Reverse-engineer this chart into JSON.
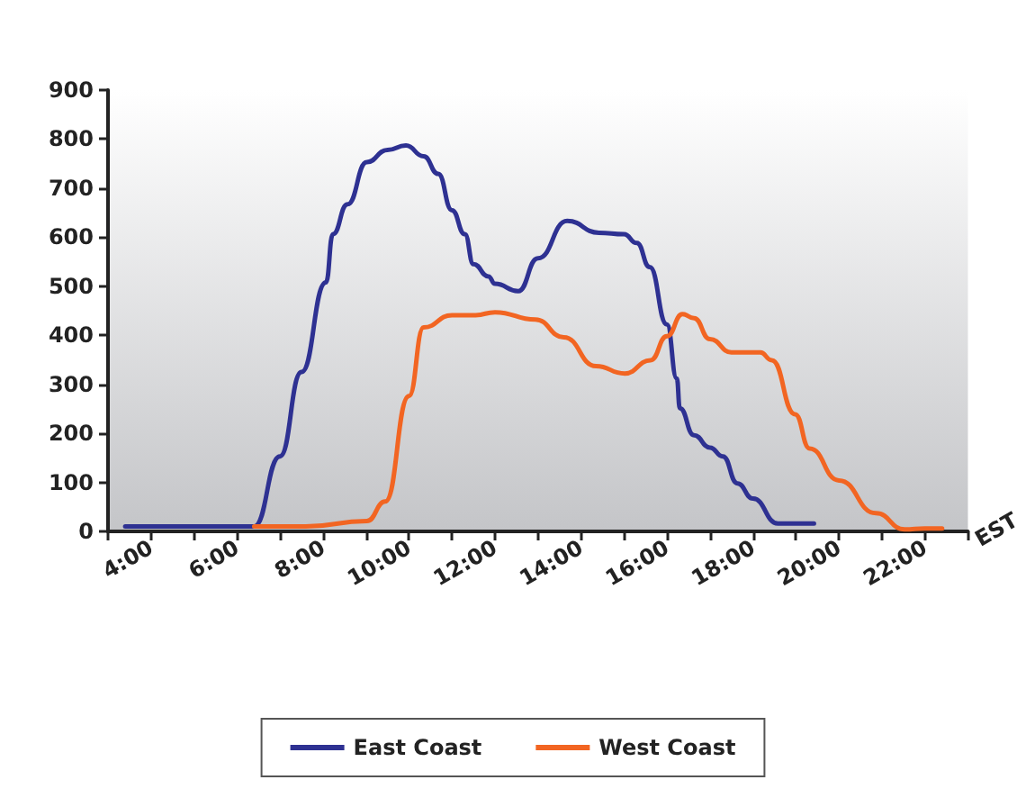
{
  "chart_data": {
    "type": "line",
    "xlabel": "EST",
    "xlim": [
      3,
      23
    ],
    "xticks": [
      {
        "value": 3,
        "label": null
      },
      {
        "value": 4,
        "label": "4:00"
      },
      {
        "value": 5,
        "label": null
      },
      {
        "value": 6,
        "label": "6:00"
      },
      {
        "value": 7,
        "label": null
      },
      {
        "value": 8,
        "label": "8:00"
      },
      {
        "value": 9,
        "label": null
      },
      {
        "value": 10,
        "label": "10:00"
      },
      {
        "value": 11,
        "label": null
      },
      {
        "value": 12,
        "label": "12:00"
      },
      {
        "value": 13,
        "label": null
      },
      {
        "value": 14,
        "label": "14:00"
      },
      {
        "value": 15,
        "label": null
      },
      {
        "value": 16,
        "label": "16:00"
      },
      {
        "value": 17,
        "label": null
      },
      {
        "value": 18,
        "label": "18:00"
      },
      {
        "value": 19,
        "label": null
      },
      {
        "value": 20,
        "label": "20:00"
      },
      {
        "value": 21,
        "label": null
      },
      {
        "value": 22,
        "label": "22:00"
      },
      {
        "value": 23,
        "label": null
      }
    ],
    "ylim": [
      0,
      900
    ],
    "yticks": [
      0,
      100,
      200,
      300,
      400,
      500,
      600,
      700,
      800,
      900
    ],
    "grid": false,
    "legend": "bottom",
    "marker": "none",
    "line_style": "solid",
    "series": [
      {
        "name": "East Coast",
        "color": "#2e3192",
        "x": [
          3.4,
          6.4,
          7.0,
          7.5,
          8.07,
          8.23,
          8.57,
          9.02,
          9.5,
          9.93,
          10.34,
          10.68,
          11.0,
          11.3,
          11.5,
          11.85,
          12.0,
          12.54,
          13.0,
          13.68,
          14.42,
          15.0,
          15.3,
          15.6,
          16.0,
          16.23,
          16.3,
          16.63,
          17.0,
          17.3,
          17.64,
          18.0,
          18.58,
          19.42
        ],
        "values": [
          10,
          10,
          153,
          325,
          508,
          606,
          667,
          753,
          778,
          787,
          765,
          729,
          655,
          606,
          545,
          520,
          505,
          490,
          557,
          633,
          609,
          606,
          588,
          539,
          422,
          312,
          251,
          196,
          171,
          153,
          98,
          67,
          16,
          16
        ]
      },
      {
        "name": "West Coast",
        "color": "#f26522",
        "x": [
          6.4,
          7.6,
          9.02,
          9.45,
          10.0,
          10.34,
          11.0,
          11.55,
          12.0,
          12.94,
          13.6,
          14.35,
          15.02,
          15.62,
          16.0,
          16.36,
          16.63,
          17.0,
          17.5,
          18.17,
          18.44,
          18.98,
          19.32,
          20.0,
          20.86,
          21.53,
          22.0,
          22.4
        ],
        "values": [
          10,
          10,
          21,
          61,
          276,
          416,
          441,
          441,
          447,
          432,
          396,
          337,
          322,
          349,
          398,
          443,
          435,
          392,
          365,
          365,
          349,
          239,
          169,
          104,
          37,
          4,
          6,
          6
        ]
      }
    ]
  }
}
